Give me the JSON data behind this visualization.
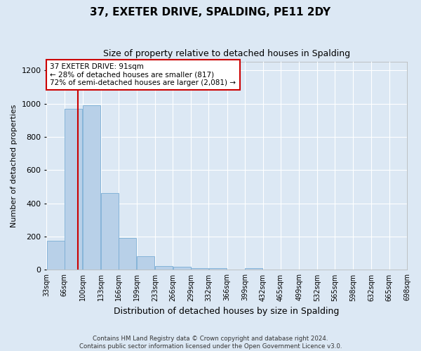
{
  "title": "37, EXETER DRIVE, SPALDING, PE11 2DY",
  "subtitle": "Size of property relative to detached houses in Spalding",
  "xlabel": "Distribution of detached houses by size in Spalding",
  "ylabel": "Number of detached properties",
  "bin_starts": [
    33,
    66,
    100,
    133,
    166,
    199,
    233,
    266,
    299,
    332,
    366,
    399,
    432,
    465,
    499,
    532,
    565,
    598,
    632,
    665
  ],
  "bin_width": 33,
  "bin_labels": [
    "33sqm",
    "66sqm",
    "100sqm",
    "133sqm",
    "166sqm",
    "199sqm",
    "233sqm",
    "266sqm",
    "299sqm",
    "332sqm",
    "366sqm",
    "399sqm",
    "432sqm",
    "465sqm",
    "499sqm",
    "532sqm",
    "565sqm",
    "598sqm",
    "632sqm",
    "665sqm",
    "698sqm"
  ],
  "values": [
    175,
    970,
    990,
    460,
    190,
    80,
    25,
    20,
    12,
    10,
    0,
    12,
    0,
    0,
    0,
    0,
    0,
    0,
    0,
    0
  ],
  "bar_color": "#b8d0e8",
  "bar_edge_color": "#7aadd4",
  "vline_x": 91,
  "vline_color": "#cc0000",
  "xlim_left": 33,
  "xlim_right": 698,
  "ylim": [
    0,
    1250
  ],
  "yticks": [
    0,
    200,
    400,
    600,
    800,
    1000,
    1200
  ],
  "annotation_text": "37 EXETER DRIVE: 91sqm\n← 28% of detached houses are smaller (817)\n72% of semi-detached houses are larger (2,081) →",
  "annotation_box_color": "#ffffff",
  "annotation_box_edge": "#cc0000",
  "footer": "Contains HM Land Registry data © Crown copyright and database right 2024.\nContains public sector information licensed under the Open Government Licence v3.0.",
  "background_color": "#dce8f4",
  "grid_color": "#ffffff",
  "title_fontsize": 11,
  "subtitle_fontsize": 9,
  "ylabel_fontsize": 8,
  "xlabel_fontsize": 9,
  "tick_fontsize": 7,
  "annot_fontsize": 7.5
}
